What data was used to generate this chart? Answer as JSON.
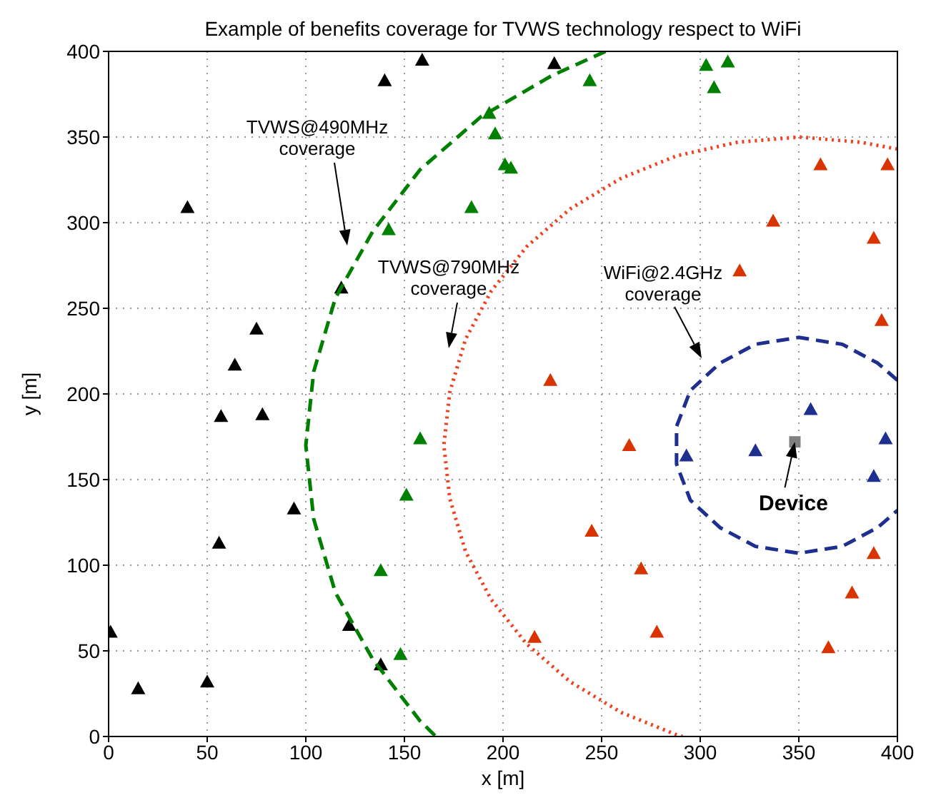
{
  "chart_data": {
    "type": "scatter",
    "title": "Example of benefits coverage for TVWS technology respect to WiFi",
    "xlabel": "x [m]",
    "ylabel": "y [m]",
    "xlim": [
      0,
      400
    ],
    "ylim": [
      0,
      400
    ],
    "xticks": [
      0,
      50,
      100,
      150,
      200,
      250,
      300,
      350,
      400
    ],
    "yticks": [
      0,
      50,
      100,
      150,
      200,
      250,
      300,
      350,
      400
    ],
    "grid": true,
    "legend": false,
    "marker": "triangle",
    "series": [
      {
        "color": "#000000",
        "x": [
          1,
          15,
          50,
          122,
          138,
          57,
          78,
          94,
          56,
          159,
          140,
          40,
          118,
          75,
          64,
          226
        ],
        "values": [
          61,
          28,
          32,
          65,
          42,
          187,
          188,
          133,
          113,
          395,
          383,
          309,
          262,
          238,
          217,
          393
        ]
      },
      {
        "color": "#008000",
        "x": [
          158,
          151,
          138,
          148,
          193,
          196,
          201,
          204,
          184,
          142,
          244,
          303,
          314,
          307
        ],
        "values": [
          174,
          141,
          97,
          48,
          364,
          352,
          334,
          332,
          309,
          296,
          383,
          392,
          394,
          379
        ]
      },
      {
        "color": "#d93300",
        "x": [
          361,
          395,
          337,
          388,
          320,
          392,
          224,
          264,
          245,
          270,
          216,
          278,
          388,
          377,
          365
        ],
        "values": [
          334,
          334,
          301,
          291,
          272,
          243,
          208,
          170,
          120,
          98,
          58,
          61,
          107,
          84,
          52
        ]
      },
      {
        "color": "#1f2f8f",
        "x": [
          356,
          394,
          388,
          328,
          293
        ],
        "values": [
          191,
          174,
          152,
          167,
          164
        ]
      },
      {
        "color": "#808080",
        "marker": "square",
        "x": [
          348
        ],
        "values": [
          172
        ]
      },
      {
        "type": "line",
        "color": "#008000",
        "line_style": "dashed",
        "marker": "none",
        "x": [
          252,
          225,
          189,
          158,
          134,
          115,
          104,
          100,
          104,
          115,
          134,
          158,
          166
        ],
        "values": [
          400,
          386,
          362,
          331,
          295,
          256,
          213,
          170,
          127,
          84,
          45,
          9,
          0
        ]
      },
      {
        "type": "line",
        "color": "#f04020",
        "line_style": "dotted",
        "marker": "none",
        "x": [
          400,
          381,
          350,
          319,
          288,
          260,
          234,
          212,
          194,
          181,
          173,
          170,
          173,
          181,
          194,
          212,
          234,
          260,
          288,
          291
        ],
        "values": [
          343,
          347,
          350,
          347,
          339,
          326,
          308,
          286,
          260,
          232,
          201,
          170,
          139,
          108,
          80,
          54,
          32,
          14,
          1,
          0
        ]
      },
      {
        "type": "line",
        "color": "#1f2f8f",
        "line_style": "dashed",
        "marker": "none",
        "x": [
          400,
          390,
          372,
          350,
          328,
          310,
          295,
          288,
          288,
          295,
          310,
          328,
          350,
          372,
          390,
          400
        ],
        "values": [
          208,
          218,
          229,
          233,
          229,
          218,
          202,
          181,
          159,
          138,
          122,
          111,
          107,
          111,
          122,
          132
        ]
      }
    ],
    "annotations": [
      "TVWS@490MHz\ncoverage",
      "TVWS@790MHz\ncoverage",
      "WiFi@2.4GHz\ncoverage",
      {
        "text": "Device",
        "x": 348,
        "y": 172
      }
    ]
  }
}
